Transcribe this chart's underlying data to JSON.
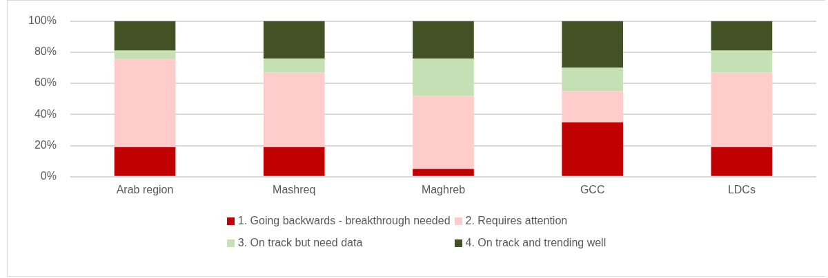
{
  "chart_data": {
    "type": "bar",
    "stacked": true,
    "categories": [
      "Arab region",
      "Mashreq",
      "Maghreb",
      "GCC",
      "LDCs"
    ],
    "series": [
      {
        "name": "1. Going backwards - breakthrough needed",
        "color": "#c00000",
        "values": [
          19,
          19,
          5,
          35,
          19
        ]
      },
      {
        "name": "2. Requires attention",
        "color": "#ffcccc",
        "values": [
          57,
          48,
          47,
          20,
          48
        ]
      },
      {
        "name": "3. On track but need data",
        "color": "#c5e0b4",
        "values": [
          5,
          9,
          24,
          15,
          14
        ]
      },
      {
        "name": "4. On track and trending well",
        "color": "#435224",
        "values": [
          19,
          24,
          24,
          30,
          19
        ]
      }
    ],
    "ylim": [
      0,
      100
    ],
    "yticks": [
      {
        "value": 0,
        "label": "0%"
      },
      {
        "value": 20,
        "label": "20%"
      },
      {
        "value": 40,
        "label": "40%"
      },
      {
        "value": 60,
        "label": "60%"
      },
      {
        "value": 80,
        "label": "80%"
      },
      {
        "value": 100,
        "label": "100%"
      }
    ],
    "grid": "y",
    "legend": "bottom"
  }
}
